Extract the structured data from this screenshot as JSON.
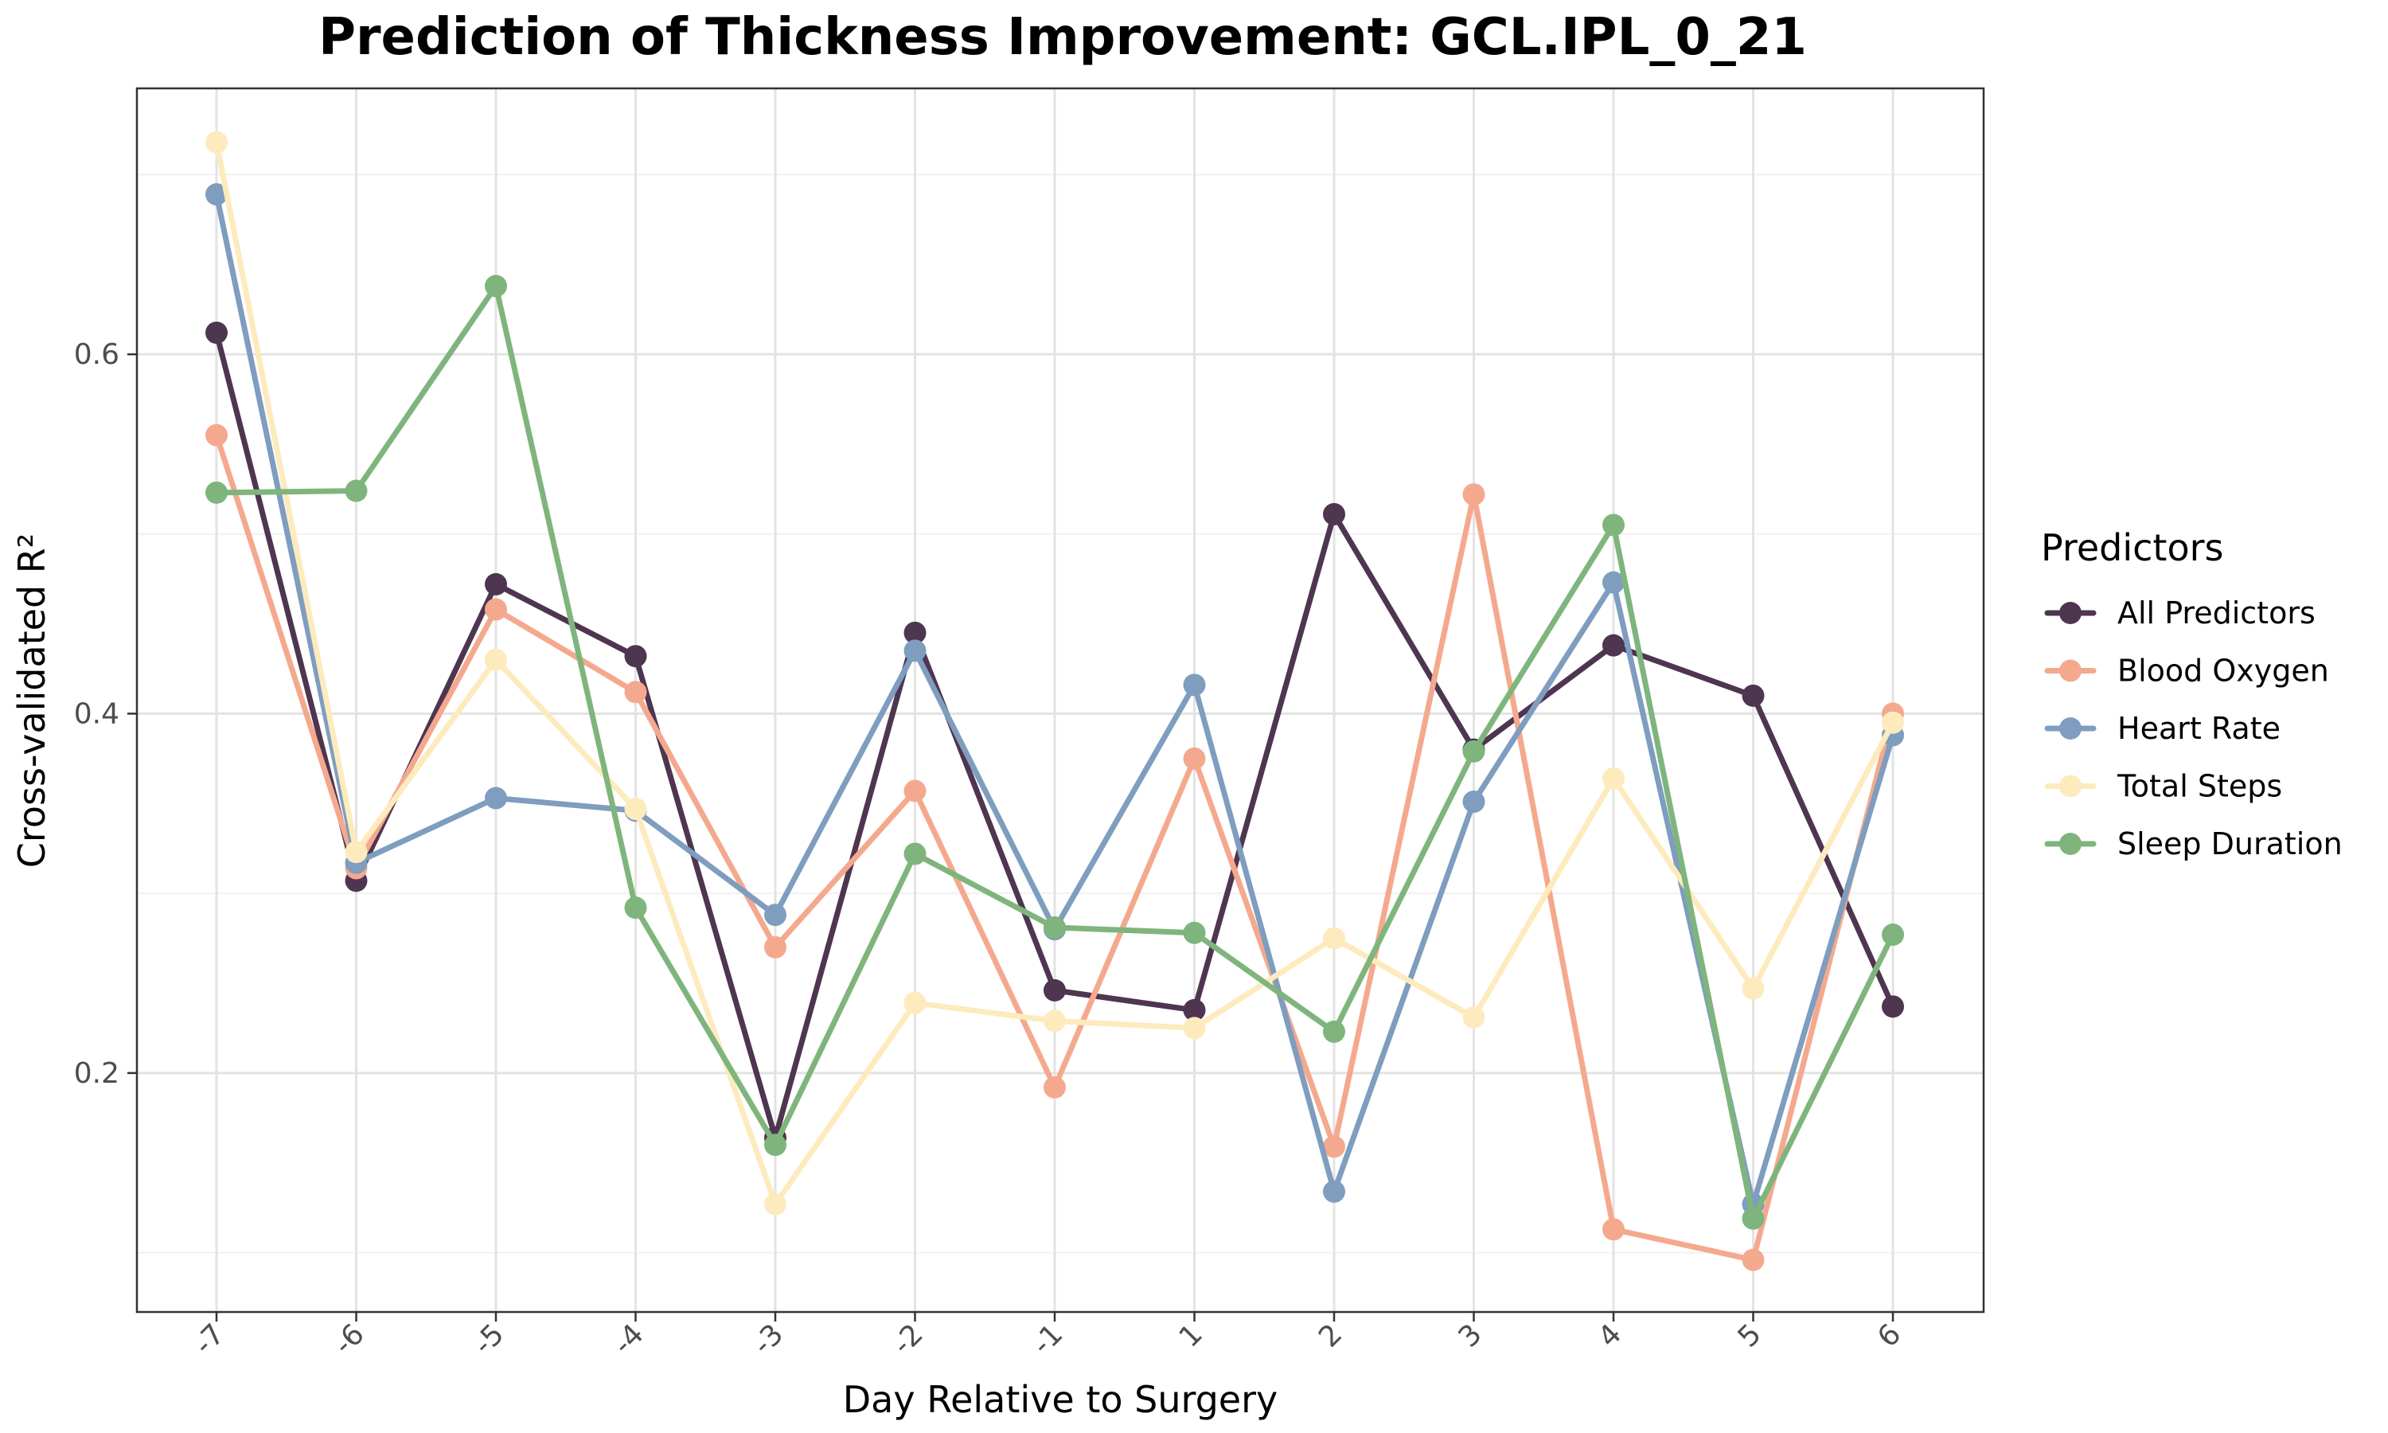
{
  "chart_data": {
    "type": "line",
    "title": "Prediction of Thickness Improvement: GCL.IPL_0_21",
    "xlabel": "Day Relative to Surgery",
    "ylabel": "Cross-validated R²",
    "categories": [
      "-7",
      "-6",
      "-5",
      "-4",
      "-3",
      "-2",
      "-1",
      "1",
      "2",
      "3",
      "4",
      "5",
      "6"
    ],
    "ylim": [
      0.067,
      0.748
    ],
    "yticks": [
      0.2,
      0.4,
      0.6
    ],
    "ytick_labels": [
      "0.2",
      "0.4",
      "0.6"
    ],
    "grid": true,
    "legend": {
      "title": "Predictors",
      "placement": "right"
    },
    "series": [
      {
        "name": "All Predictors",
        "color": "#4e3550",
        "values": [
          0.612,
          0.307,
          0.472,
          0.432,
          0.164,
          0.445,
          0.246,
          0.235,
          0.511,
          0.38,
          0.438,
          0.41,
          0.237
        ]
      },
      {
        "name": "Blood Oxygen",
        "color": "#f4a98e",
        "values": [
          0.555,
          0.314,
          0.458,
          0.412,
          0.27,
          0.357,
          0.192,
          0.375,
          0.159,
          0.522,
          0.113,
          0.096,
          0.4
        ]
      },
      {
        "name": "Heart Rate",
        "color": "#7e9dbf",
        "values": [
          0.689,
          0.317,
          0.353,
          0.346,
          0.288,
          0.435,
          0.28,
          0.416,
          0.134,
          0.351,
          0.473,
          0.127,
          0.388
        ]
      },
      {
        "name": "Total Steps",
        "color": "#fdebbe",
        "values": [
          0.718,
          0.323,
          0.43,
          0.347,
          0.127,
          0.239,
          0.229,
          0.225,
          0.275,
          0.231,
          0.364,
          0.247,
          0.395
        ]
      },
      {
        "name": "Sleep Duration",
        "color": "#7fb57c",
        "values": [
          0.523,
          0.524,
          0.638,
          0.292,
          0.16,
          0.322,
          0.281,
          0.278,
          0.223,
          0.379,
          0.505,
          0.119,
          0.277
        ]
      }
    ]
  }
}
